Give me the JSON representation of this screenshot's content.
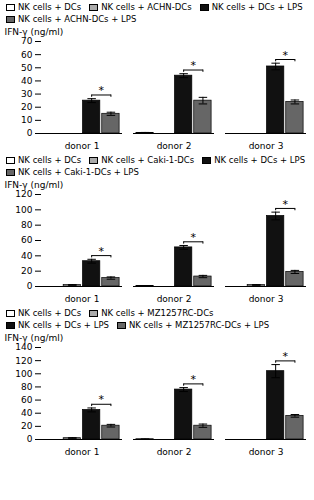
{
  "chart_data": [
    {
      "type": "bar",
      "ylabel": "IFN-γ (ng/ml)",
      "categories": [
        "donor 1",
        "donor 2",
        "donor 3"
      ],
      "series": [
        {
          "name": "NK cells + DCs",
          "color": "#ffffff",
          "values": [
            0,
            0.5,
            0
          ],
          "errors": [
            0,
            0.3,
            0
          ]
        },
        {
          "name": "NK cells + ACHN-DCs",
          "color": "#aaaaaa",
          "values": [
            0,
            0,
            0
          ],
          "errors": [
            0,
            0,
            0
          ]
        },
        {
          "name": "NK cells + DCs + LPS",
          "color": "#111111",
          "values": [
            25,
            44,
            51
          ],
          "errors": [
            1.5,
            1.5,
            2.5
          ]
        },
        {
          "name": "NK cells + ACHN-DCs + LPS",
          "color": "#666666",
          "values": [
            15,
            25,
            24
          ],
          "errors": [
            1.2,
            2.5,
            1.5
          ]
        }
      ],
      "ylim": [
        0,
        70
      ],
      "yticks": [
        0,
        10,
        20,
        30,
        40,
        50,
        60,
        70
      ],
      "grid": false,
      "legend": "upper left",
      "annotations": [
        {
          "text": "*",
          "category": "donor 1",
          "series": [
            "NK cells + DCs + LPS",
            "NK cells + ACHN-DCs + LPS"
          ]
        },
        {
          "text": "*",
          "category": "donor 2",
          "series": [
            "NK cells + DCs + LPS",
            "NK cells + ACHN-DCs + LPS"
          ]
        },
        {
          "text": "*",
          "category": "donor 3",
          "series": [
            "NK cells + DCs + LPS",
            "NK cells + ACHN-DCs + LPS"
          ]
        }
      ]
    },
    {
      "type": "bar",
      "ylabel": "IFN-γ (ng/ml)",
      "categories": [
        "donor 1",
        "donor 2",
        "donor 3"
      ],
      "series": [
        {
          "name": "NK cells + DCs",
          "color": "#ffffff",
          "values": [
            0,
            0.5,
            0
          ],
          "errors": [
            0,
            0.3,
            0
          ]
        },
        {
          "name": "NK cells + Caki-1-DCs",
          "color": "#aaaaaa",
          "values": [
            2,
            0,
            2
          ],
          "errors": [
            0.5,
            0,
            0.5
          ]
        },
        {
          "name": "NK cells + DCs + LPS",
          "color": "#111111",
          "values": [
            33,
            51,
            92
          ],
          "errors": [
            2.5,
            2.5,
            5
          ]
        },
        {
          "name": "NK cells + Caki-1-DCs + LPS",
          "color": "#666666",
          "values": [
            11,
            13,
            19
          ],
          "errors": [
            1.5,
            1.5,
            2
          ]
        }
      ],
      "ylim": [
        0,
        120
      ],
      "yticks": [
        0,
        20,
        40,
        60,
        80,
        100,
        120
      ],
      "grid": false,
      "legend": "upper left",
      "annotations": [
        {
          "text": "*",
          "category": "donor 1",
          "series": [
            "NK cells + DCs + LPS",
            "NK cells + Caki-1-DCs + LPS"
          ]
        },
        {
          "text": "*",
          "category": "donor 2",
          "series": [
            "NK cells + DCs + LPS",
            "NK cells + Caki-1-DCs + LPS"
          ]
        },
        {
          "text": "*",
          "category": "donor 3",
          "series": [
            "NK cells + DCs + LPS",
            "NK cells + Caki-1-DCs + LPS"
          ]
        }
      ]
    },
    {
      "type": "bar",
      "ylabel": "IFN-γ (ng/ml)",
      "categories": [
        "donor 1",
        "donor 2",
        "donor 3"
      ],
      "series": [
        {
          "name": "NK cells + DCs",
          "color": "#ffffff",
          "values": [
            0,
            0.5,
            0
          ],
          "errors": [
            0,
            0.3,
            0
          ]
        },
        {
          "name": "NK cells + MZ1257RC-DCs",
          "color": "#aaaaaa",
          "values": [
            2,
            0,
            0
          ],
          "errors": [
            0.8,
            0,
            0
          ]
        },
        {
          "name": "NK cells + DCs + LPS",
          "color": "#111111",
          "values": [
            45,
            76,
            104
          ],
          "errors": [
            3,
            3,
            10
          ]
        },
        {
          "name": "NK cells + MZ1257RC-DCs + LPS",
          "color": "#666666",
          "values": [
            21,
            21,
            36
          ],
          "errors": [
            2,
            2.5,
            2
          ]
        }
      ],
      "ylim": [
        0,
        140
      ],
      "yticks": [
        0,
        20,
        40,
        60,
        80,
        100,
        120,
        140
      ],
      "grid": false,
      "legend": "upper left",
      "annotations": [
        {
          "text": "*",
          "category": "donor 1",
          "series": [
            "NK cells + DCs + LPS",
            "NK cells + MZ1257RC-DCs + LPS"
          ]
        },
        {
          "text": "*",
          "category": "donor 2",
          "series": [
            "NK cells + DCs + LPS",
            "NK cells + MZ1257RC-DCs + LPS"
          ]
        },
        {
          "text": "*",
          "category": "donor 3",
          "series": [
            "NK cells + DCs + LPS",
            "NK cells + MZ1257RC-DCs + LPS"
          ]
        }
      ]
    }
  ]
}
